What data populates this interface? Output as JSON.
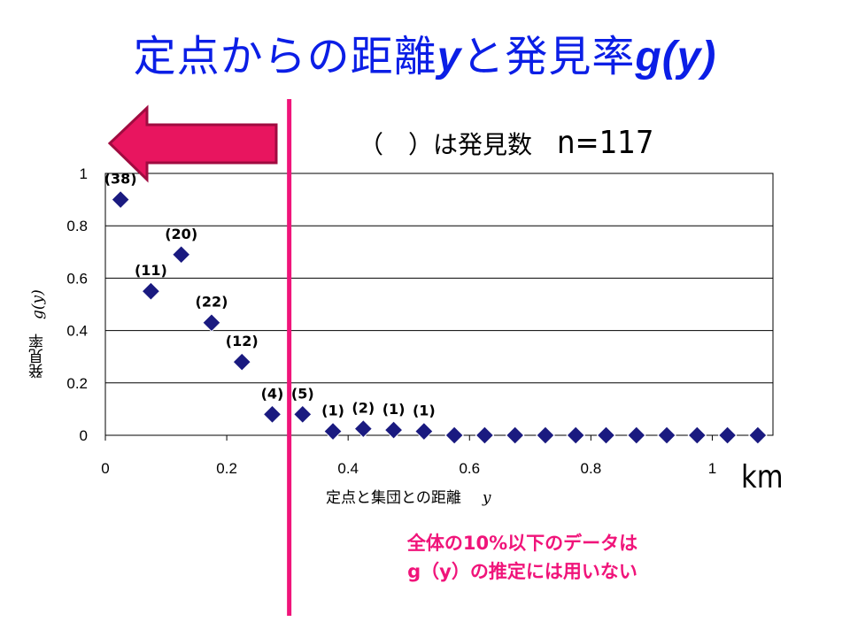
{
  "title": {
    "main": "定点からの距離",
    "var_y": "y",
    "mid": "と発見率",
    "var_gy": "g(y)"
  },
  "count_note": {
    "label": "（　）は発見数",
    "n": "n=117"
  },
  "unit_label": "km",
  "caption": {
    "line1": "全体の10%以下のデータは",
    "line2": "g（y）の推定には用いない"
  },
  "colors": {
    "title": "#0b1ee6",
    "marker": "#1a1a80",
    "accent": "#f0147a",
    "arrow_fill": "#e8155f"
  },
  "chart_data": {
    "type": "scatter",
    "xlabel": "定点と集団との距離",
    "xlabel_var": "y",
    "ylabel": "発見率",
    "ylabel_var": "g(y)",
    "xlim": [
      0,
      1.1
    ],
    "ylim": [
      0,
      1
    ],
    "xticks": [
      0,
      0.2,
      0.4,
      0.6,
      0.8,
      1
    ],
    "xtick_labels": [
      "0",
      "0.2",
      "0.4",
      "0.6",
      "0.8",
      "1"
    ],
    "yticks": [
      0,
      0.2,
      0.4,
      0.6,
      0.8,
      1
    ],
    "ytick_labels": [
      "0",
      "0.2",
      "0.4",
      "0.6",
      "0.8",
      "1"
    ],
    "grid": "horizontal",
    "cutoff_x": 0.3,
    "points": [
      {
        "x": 0.025,
        "y": 0.9,
        "label": "(38)"
      },
      {
        "x": 0.075,
        "y": 0.55,
        "label": "(11)"
      },
      {
        "x": 0.125,
        "y": 0.69,
        "label": "(20)"
      },
      {
        "x": 0.175,
        "y": 0.43,
        "label": "(22)"
      },
      {
        "x": 0.225,
        "y": 0.28,
        "label": "(12)"
      },
      {
        "x": 0.275,
        "y": 0.08,
        "label": "(4)"
      },
      {
        "x": 0.325,
        "y": 0.08,
        "label": "(5)"
      },
      {
        "x": 0.375,
        "y": 0.015,
        "label": "(1)"
      },
      {
        "x": 0.425,
        "y": 0.025,
        "label": "(2)"
      },
      {
        "x": 0.475,
        "y": 0.02,
        "label": "(1)"
      },
      {
        "x": 0.525,
        "y": 0.015,
        "label": "(1)"
      },
      {
        "x": 0.575,
        "y": 0,
        "label": ""
      },
      {
        "x": 0.625,
        "y": 0,
        "label": ""
      },
      {
        "x": 0.675,
        "y": 0,
        "label": ""
      },
      {
        "x": 0.725,
        "y": 0,
        "label": ""
      },
      {
        "x": 0.775,
        "y": 0,
        "label": ""
      },
      {
        "x": 0.825,
        "y": 0,
        "label": ""
      },
      {
        "x": 0.875,
        "y": 0,
        "label": ""
      },
      {
        "x": 0.925,
        "y": 0,
        "label": ""
      },
      {
        "x": 0.975,
        "y": 0,
        "label": ""
      },
      {
        "x": 1.025,
        "y": 0,
        "label": ""
      },
      {
        "x": 1.075,
        "y": 0,
        "label": ""
      }
    ]
  }
}
